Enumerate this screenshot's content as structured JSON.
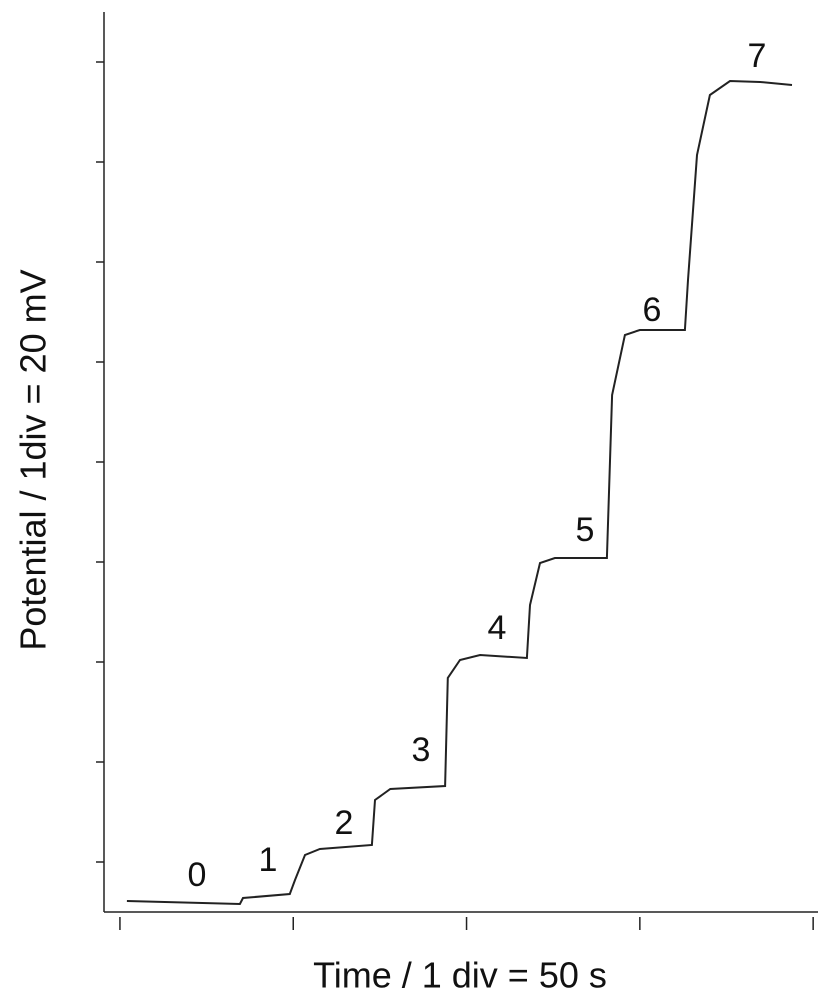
{
  "chart_data": {
    "type": "line",
    "xlabel": "Time / 1 div = 50 s",
    "ylabel": "Potential / 1div = 20 mV",
    "x": [
      2,
      34.6,
      35.5,
      49,
      50.5,
      53.4,
      57.7,
      72.7,
      73.6,
      78,
      93.8,
      94.6,
      98.1,
      103.9,
      117.4,
      118.3,
      121.2,
      125.5,
      140.5,
      142,
      145.7,
      150,
      163,
      163.9,
      166.5,
      170.2,
      176,
      184.7,
      193.9
    ],
    "series": [
      {
        "color": "#222222",
        "values": [
          -7.8,
          -8.4,
          -7.2,
          -6.4,
          -3.6,
          1.4,
          2.6,
          3.4,
          12.4,
          14.6,
          15.2,
          36.8,
          40.4,
          41.4,
          40.8,
          51.4,
          59.8,
          60.8,
          60.8,
          93.4,
          105.4,
          106.4,
          106.4,
          116.4,
          141.4,
          153.4,
          156.2,
          156,
          155.4
        ]
      }
    ],
    "annotations": [
      "0",
      "1",
      "2",
      "3",
      "4",
      "5",
      "6",
      "7"
    ],
    "xlim": [
      -4.6,
      201.4
    ],
    "xticks": [
      0,
      50,
      100,
      150,
      200
    ],
    "ylim": [
      -10,
      170
    ],
    "yticks": [
      0,
      20,
      40,
      60,
      80,
      100,
      120,
      140,
      160
    ]
  }
}
